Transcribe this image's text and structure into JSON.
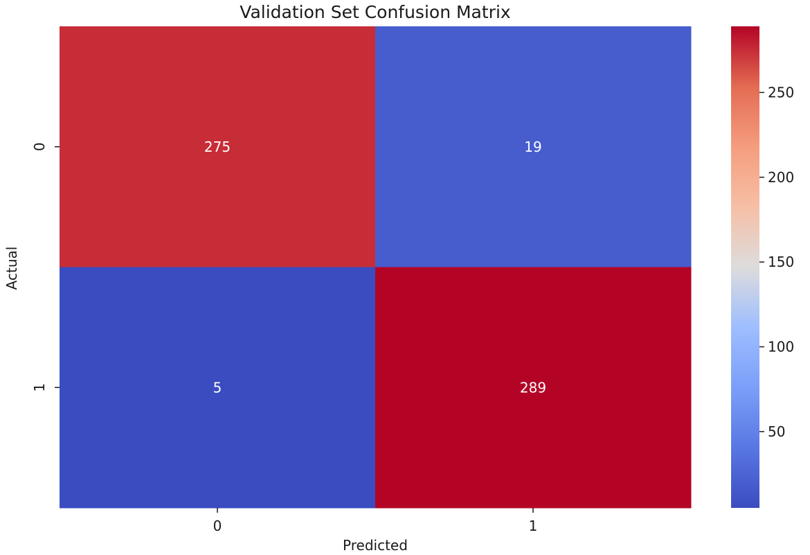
{
  "chart_data": {
    "type": "heatmap",
    "title": "Validation Set Confusion Matrix",
    "xlabel": "Predicted",
    "ylabel": "Actual",
    "x_categories": [
      "0",
      "1"
    ],
    "y_categories": [
      "0",
      "1"
    ],
    "values": [
      [
        275,
        19
      ],
      [
        5,
        289
      ]
    ],
    "colormap": "coolwarm",
    "colorbar": {
      "range": [
        5,
        289
      ],
      "ticks": [
        50,
        100,
        150,
        200,
        250
      ],
      "tick_labels": [
        "50",
        "100",
        "150",
        "200",
        "250"
      ]
    },
    "grid": false,
    "legend": "colorbar-right"
  }
}
